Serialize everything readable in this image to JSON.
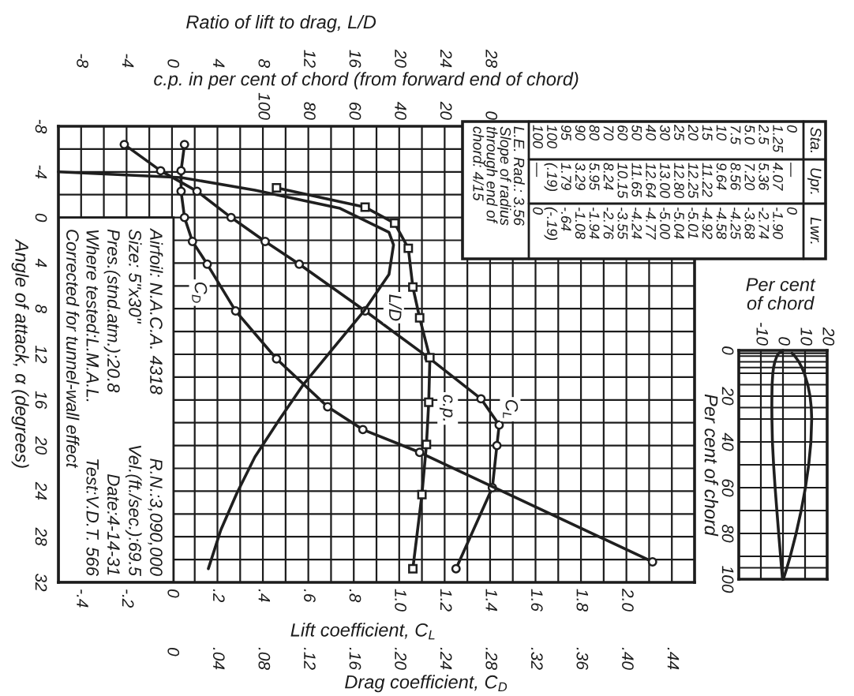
{
  "chart_data": [
    {
      "type": "line",
      "orientation": "horizontal",
      "xlabel": "Lift coefficient, C$_{L}$",
      "x2label": "Ratio of lift to drag, L/D",
      "ylabel": "Angle of attack, α (degrees)",
      "xlim": [
        -0.5,
        2.3
      ],
      "xticks": [
        {
          "value": -0.4,
          "label": "-.4"
        },
        {
          "value": -0.3,
          "label": null
        },
        {
          "value": -0.2,
          "label": "-.2"
        },
        {
          "value": -0.1,
          "label": null
        },
        0,
        {
          "value": 0.1,
          "label": null
        },
        {
          "value": 0.2,
          "label": ".2"
        },
        {
          "value": 0.3,
          "label": null
        },
        {
          "value": 0.4,
          "label": ".4"
        },
        {
          "value": 0.5,
          "label": null
        },
        {
          "value": 0.6,
          "label": ".6"
        },
        {
          "value": 0.7,
          "label": null
        },
        {
          "value": 0.8,
          "label": ".8"
        },
        {
          "value": 0.9,
          "label": null
        },
        {
          "value": 1.0,
          "label": "1.0"
        },
        {
          "value": 1.1,
          "label": null
        },
        {
          "value": 1.2,
          "label": "1.2"
        },
        {
          "value": 1.3,
          "label": null
        },
        {
          "value": 1.4,
          "label": "1.4"
        },
        {
          "value": 1.5,
          "label": null
        },
        {
          "value": 1.6,
          "label": "1.6"
        },
        {
          "value": 1.7,
          "label": null
        },
        {
          "value": 1.8,
          "label": "1.8"
        },
        {
          "value": 1.9,
          "label": null
        },
        {
          "value": 2.0,
          "label": "2.0"
        },
        {
          "value": 2.1,
          "label": null
        },
        {
          "value": 2.2,
          "label": null
        }
      ],
      "x2lim": [
        -10,
        46
      ],
      "x2ticks": [
        -8,
        -4,
        0,
        4,
        8,
        12,
        16,
        20,
        24,
        28
      ],
      "ylim": [
        32,
        -8
      ],
      "yticks": [
        -8,
        {
          "value": -6,
          "label": null
        },
        -4,
        {
          "value": -2,
          "label": null
        },
        0,
        {
          "value": 2,
          "label": null
        },
        4,
        {
          "value": 6,
          "label": null
        },
        8,
        {
          "value": 10,
          "label": null
        },
        12,
        {
          "value": 14,
          "label": null
        },
        16,
        {
          "value": 18,
          "label": null
        },
        20,
        {
          "value": 22,
          "label": null
        },
        24,
        {
          "value": 26,
          "label": null
        },
        28,
        {
          "value": 30,
          "label": null
        },
        32
      ],
      "grid": true,
      "series": [
        {
          "name": "C$_{L}$",
          "color": "#1f1f1f",
          "marker": "circle",
          "x": [
            -6.4,
            -4.1,
            -2.3,
            0.0,
            2.1,
            4.1,
            8.2,
            12.3,
            15.9,
            18.2,
            20.0,
            23.7,
            30.8
          ],
          "values": [
            -0.21,
            -0.05,
            0.11,
            0.26,
            0.41,
            0.56,
            0.85,
            1.13,
            1.36,
            1.44,
            1.43,
            1.41,
            1.25
          ]
        },
        {
          "name": "L/D",
          "color": "#1f1f1f",
          "axis": "x2",
          "x": [
            -4.0,
            -3.5,
            -2.4,
            -0.8,
            1.3,
            2.4,
            5.0,
            8.2,
            11.7,
            14.6,
            17.8,
            21.0,
            24.2,
            27.4,
            30.8
          ],
          "values": [
            -10,
            0.8,
            7.3,
            14.8,
            19.1,
            19.5,
            19.1,
            16.9,
            14.0,
            11.6,
            9.4,
            7.3,
            5.7,
            4.3,
            3.2
          ]
        }
      ],
      "annotations": [
        "Airfoil: N.A.C.A. 4318",
        "R.N.:3,090,000",
        "Size: 5\"x30\"",
        "Vel.(ft./sec.):69.5",
        "Pres.(stnd.atm.):20.8",
        "Date:4-14-31",
        "Where tested:L.M.A.L.",
        "Test:V.D.T. 566",
        "Corrected for tunnel-wall effect"
      ]
    },
    {
      "type": "line",
      "orientation": "horizontal",
      "xlabel": "Drag coefficient, C$_{D}$",
      "x2label": "c.p. in per cent of chord (from forward end of chord)",
      "xlim": [
        -0.1,
        0.46
      ],
      "xticks": [
        0,
        {
          "value": 0.04,
          "label": ".04"
        },
        {
          "value": 0.08,
          "label": ".08"
        },
        {
          "value": 0.12,
          "label": ".12"
        },
        {
          "value": 0.16,
          "label": ".16"
        },
        {
          "value": 0.2,
          "label": ".20"
        },
        {
          "value": 0.24,
          "label": ".24"
        },
        {
          "value": 0.28,
          "label": ".28"
        },
        {
          "value": 0.32,
          "label": ".32"
        },
        {
          "value": 0.36,
          "label": ".36"
        },
        {
          "value": 0.4,
          "label": ".40"
        },
        {
          "value": 0.44,
          "label": ".44"
        }
      ],
      "x2lim": [
        190,
        -90
      ],
      "x2ticks": [
        100,
        80,
        60,
        40,
        20,
        0
      ],
      "ylim": [
        32,
        -8
      ],
      "tick_labels": "x",
      "series": [
        {
          "name": "C$_{D}$",
          "color": "#1f1f1f",
          "marker": "circle",
          "x": [
            -6.4,
            -4.1,
            -2.3,
            0.0,
            2.1,
            4.1,
            8.2,
            12.4,
            16.6,
            18.6,
            20.6,
            30.2
          ],
          "values": [
            0.011,
            0.008,
            0.008,
            0.011,
            0.018,
            0.031,
            0.056,
            0.092,
            0.137,
            0.168,
            0.218,
            0.423
          ]
        },
        {
          "name": "c.p.",
          "color": "#1f1f1f",
          "marker": "square",
          "axis": "x2",
          "x": [
            -2.6,
            -0.9,
            0.5,
            2.7,
            6.1,
            8.8,
            12.3,
            16.2,
            19.9,
            24.3,
            30.8
          ],
          "values": [
            94,
            55,
            42,
            36,
            34,
            31,
            26.5,
            27,
            28,
            30,
            34
          ]
        }
      ]
    },
    {
      "type": "line",
      "orientation": "horizontal",
      "xlabel": "Per cent of chord",
      "ylabel": "Per cent of chord",
      "x": [
        0,
        1.25,
        2.5,
        5.0,
        7.5,
        10,
        15,
        20,
        25,
        30,
        40,
        50,
        60,
        70,
        80,
        90,
        95,
        100,
        100
      ],
      "series": [
        {
          "color": "#1f1f1f",
          "values": [
            null,
            4.07,
            5.36,
            7.2,
            8.56,
            9.64,
            11.22,
            12.25,
            12.8,
            13.0,
            12.64,
            11.65,
            10.15,
            8.24,
            5.95,
            3.29,
            1.79,
            0.19,
            null
          ]
        },
        {
          "color": "#1f1f1f",
          "values": [
            0,
            -1.9,
            -2.74,
            -3.68,
            -4.25,
            -4.58,
            -4.92,
            -5.01,
            -5.04,
            -5.0,
            -4.77,
            -4.24,
            -3.55,
            -2.76,
            -1.94,
            -1.08,
            -0.64,
            -0.19,
            0
          ]
        }
      ],
      "xlim": [
        -20,
        20
      ],
      "xticks": [
        {
          "value": -20,
          "label": null
        },
        -10,
        0,
        10,
        20
      ],
      "ylim": [
        100,
        0
      ],
      "yticks": [
        0,
        {
          "value": 1.25,
          "label": null
        },
        {
          "value": 2.5,
          "label": null
        },
        {
          "value": 5,
          "label": null
        },
        {
          "value": 7.5,
          "label": null
        },
        {
          "value": 10,
          "label": null
        },
        {
          "value": 15,
          "label": null
        },
        20,
        {
          "value": 25,
          "label": null
        },
        {
          "value": 30,
          "label": null
        },
        40,
        {
          "value": 50,
          "label": null
        },
        60,
        {
          "value": 70,
          "label": null
        },
        80,
        {
          "value": 90,
          "label": null
        },
        {
          "value": 95,
          "label": null
        },
        100
      ],
      "grid": true,
      "annotations": [
        "L.E. Rad.: 3.56",
        "Slope of radius",
        "through end of",
        "chord: 4/15",
        "Sta.",
        "Upr.",
        "Lwr.",
        "0",
        "—",
        "0",
        "1.25",
        "4.07",
        "-1.90",
        "2.5",
        "5.36",
        "-2.74",
        "5.0",
        "7.20",
        "-3.68",
        "7.5",
        "8.56",
        "-4.25",
        "10",
        "9.64",
        "-4.58",
        "15",
        "11.22",
        "-4.92",
        "20",
        "12.25",
        "-5.01",
        "25",
        "12.80",
        "-5.04",
        "30",
        "13.00",
        "-5.00",
        "40",
        "12.64",
        "-4.77",
        "50",
        "11.65",
        "-4.24",
        "60",
        "10.15",
        "-3.55",
        "70",
        "8.24",
        "-2.76",
        "80",
        "5.95",
        "-1.94",
        "90",
        "3.29",
        "-1.08",
        "95",
        "1.79",
        "-.64",
        "100",
        "(.19)",
        "(-.19)",
        "100",
        "—",
        "0"
      ]
    }
  ]
}
